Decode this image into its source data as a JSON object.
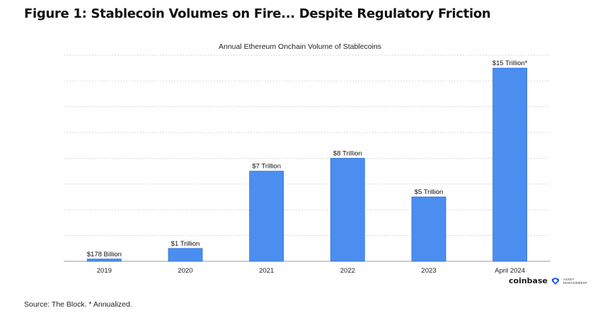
{
  "figure_title": "Figure 1: Stablecoin Volumes on Fire... Despite Regulatory Friction",
  "source_note": "Source: The Block. * Annualized.",
  "brand": {
    "name": "coinbase",
    "subtitle": [
      "ASSET",
      "MANAGEMENT"
    ],
    "icon": "coinbase-asset-management-icon",
    "color": "#1652f0"
  },
  "chart_data": {
    "type": "bar",
    "title": "Annual Ethereum Onchain Volume of Stablecoins",
    "categories": [
      "2019",
      "2020",
      "2021",
      "2022",
      "2023",
      "April 2024"
    ],
    "values": [
      0.178,
      1,
      7,
      8,
      5,
      15
    ],
    "value_unit": "Trillion USD",
    "data_labels": [
      "$178 Billion",
      "$1 Trillion",
      "$7 Trillion",
      "$8 Trillion",
      "$5 Trillion",
      "$15 Trillion*"
    ],
    "xlabel": "",
    "ylabel": "",
    "ylim": [
      0,
      16
    ],
    "grid": true,
    "grid_style": "dashed horizontal",
    "bar_color": "#4b8ef0",
    "bar_edge_color": "#2f6fd6"
  }
}
